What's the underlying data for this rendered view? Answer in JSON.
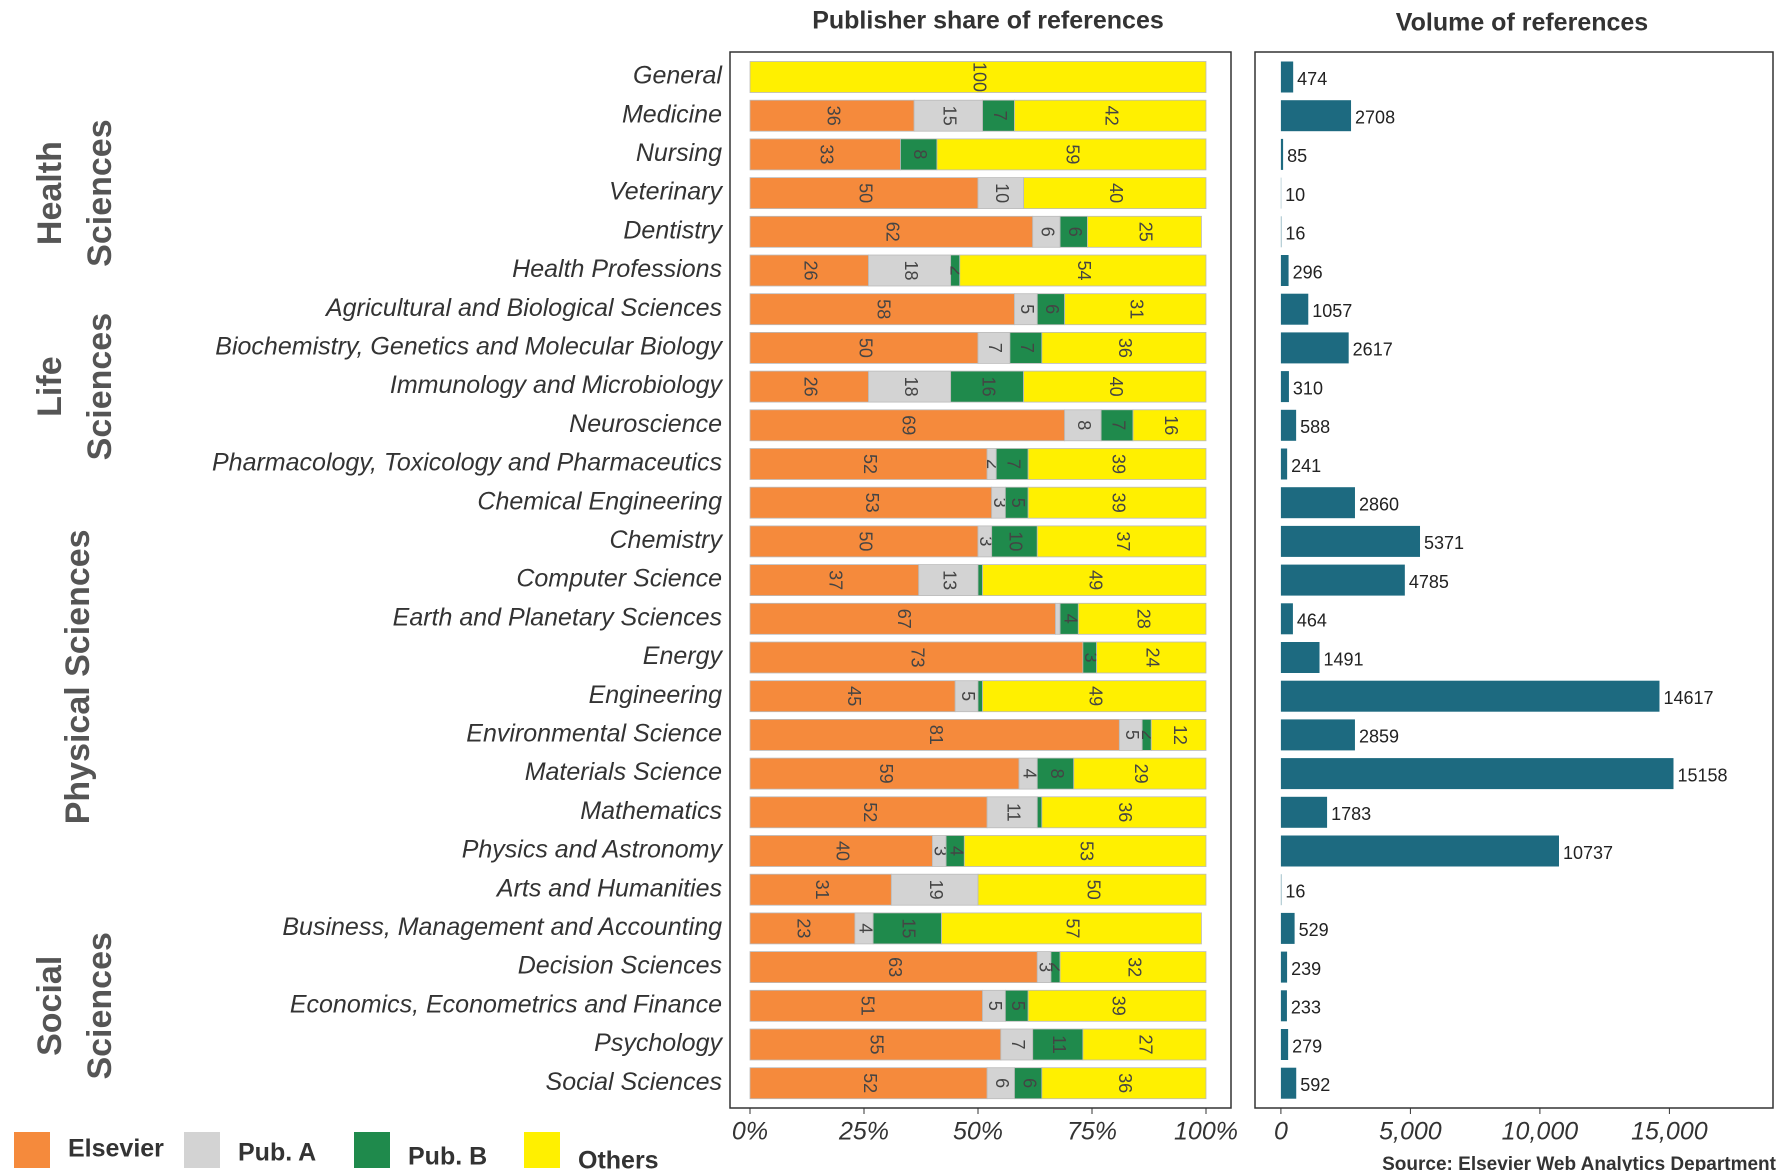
{
  "chart_data": [
    {
      "type": "stacked_bar",
      "title": "Publisher share of references",
      "categories": [
        "General",
        "Medicine",
        "Nursing",
        "Veterinary",
        "Dentistry",
        "Health Professions",
        "Agricultural and Biological Sciences",
        "Biochemistry, Genetics and Molecular Biology",
        "Immunology and Microbiology",
        "Neuroscience",
        "Pharmacology, Toxicology and Pharmaceutics",
        "Chemical Engineering",
        "Chemistry",
        "Computer Science",
        "Earth and Planetary Sciences",
        "Energy",
        "Engineering",
        "Environmental Science",
        "Materials Science",
        "Mathematics",
        "Physics and Astronomy",
        "Arts and Humanities",
        "Business, Management and Accounting",
        "Decision Sciences",
        "Economics, Econometrics and Finance",
        "Psychology",
        "Social Sciences"
      ],
      "groups": [
        {
          "label": [
            "Health",
            "Sciences"
          ],
          "rows": [
            1,
            5
          ]
        },
        {
          "label": [
            "Life",
            "Sciences"
          ],
          "rows": [
            6,
            10
          ]
        },
        {
          "label": [
            "Physical Sciences"
          ],
          "rows": [
            11,
            20
          ]
        },
        {
          "label": [
            "Social",
            "Sciences"
          ],
          "rows": [
            22,
            26
          ]
        }
      ],
      "series": [
        {
          "name": "Elsevier",
          "color": "#f58a3c",
          "values": [
            0,
            36,
            33,
            50,
            62,
            26,
            58,
            50,
            26,
            69,
            52,
            53,
            50,
            37,
            67,
            73,
            45,
            81,
            59,
            52,
            40,
            31,
            23,
            63,
            51,
            55,
            52
          ]
        },
        {
          "name": "Pub. A",
          "color": "#d3d3d3",
          "values": [
            0,
            15,
            0,
            10,
            6,
            18,
            5,
            7,
            18,
            8,
            2,
            3,
            3,
            13,
            1,
            0,
            5,
            5,
            4,
            11,
            3,
            19,
            4,
            3,
            5,
            7,
            6
          ]
        },
        {
          "name": "Pub. B",
          "color": "#1f8a4c",
          "values": [
            0,
            7,
            8,
            0,
            6,
            2,
            6,
            7,
            16,
            7,
            7,
            5,
            10,
            1,
            4,
            3,
            1,
            2,
            8,
            1,
            4,
            0,
            15,
            2,
            5,
            11,
            6
          ]
        },
        {
          "name": "Others",
          "color": "#fff000",
          "values": [
            100,
            42,
            59,
            40,
            25,
            54,
            31,
            36,
            40,
            16,
            39,
            39,
            37,
            49,
            28,
            24,
            49,
            12,
            29,
            36,
            53,
            50,
            57,
            32,
            39,
            27,
            36
          ]
        }
      ],
      "xlim": [
        0,
        100
      ],
      "xticks": [
        {
          "value": 0,
          "label": "0%"
        },
        {
          "value": 25,
          "label": "25%"
        },
        {
          "value": 50,
          "label": "50%"
        },
        {
          "value": 75,
          "label": "75%"
        },
        {
          "value": 100,
          "label": "100%"
        }
      ]
    },
    {
      "type": "bar",
      "title": "Volume of references",
      "color": "#1d6a80",
      "values": [
        474,
        2708,
        85,
        10,
        16,
        296,
        1057,
        2617,
        310,
        588,
        241,
        2860,
        5371,
        4785,
        464,
        1491,
        14617,
        2859,
        15158,
        1783,
        10737,
        16,
        529,
        239,
        233,
        279,
        592
      ],
      "xlim": [
        -1000,
        19000
      ],
      "xticks": [
        0,
        {
          "value": 5000,
          "label": "5,000"
        },
        {
          "value": 10000,
          "label": "10,000"
        },
        {
          "value": 15000,
          "label": "15,000"
        }
      ],
      "source": "Source: Elsevier Web Analytics Department"
    }
  ]
}
